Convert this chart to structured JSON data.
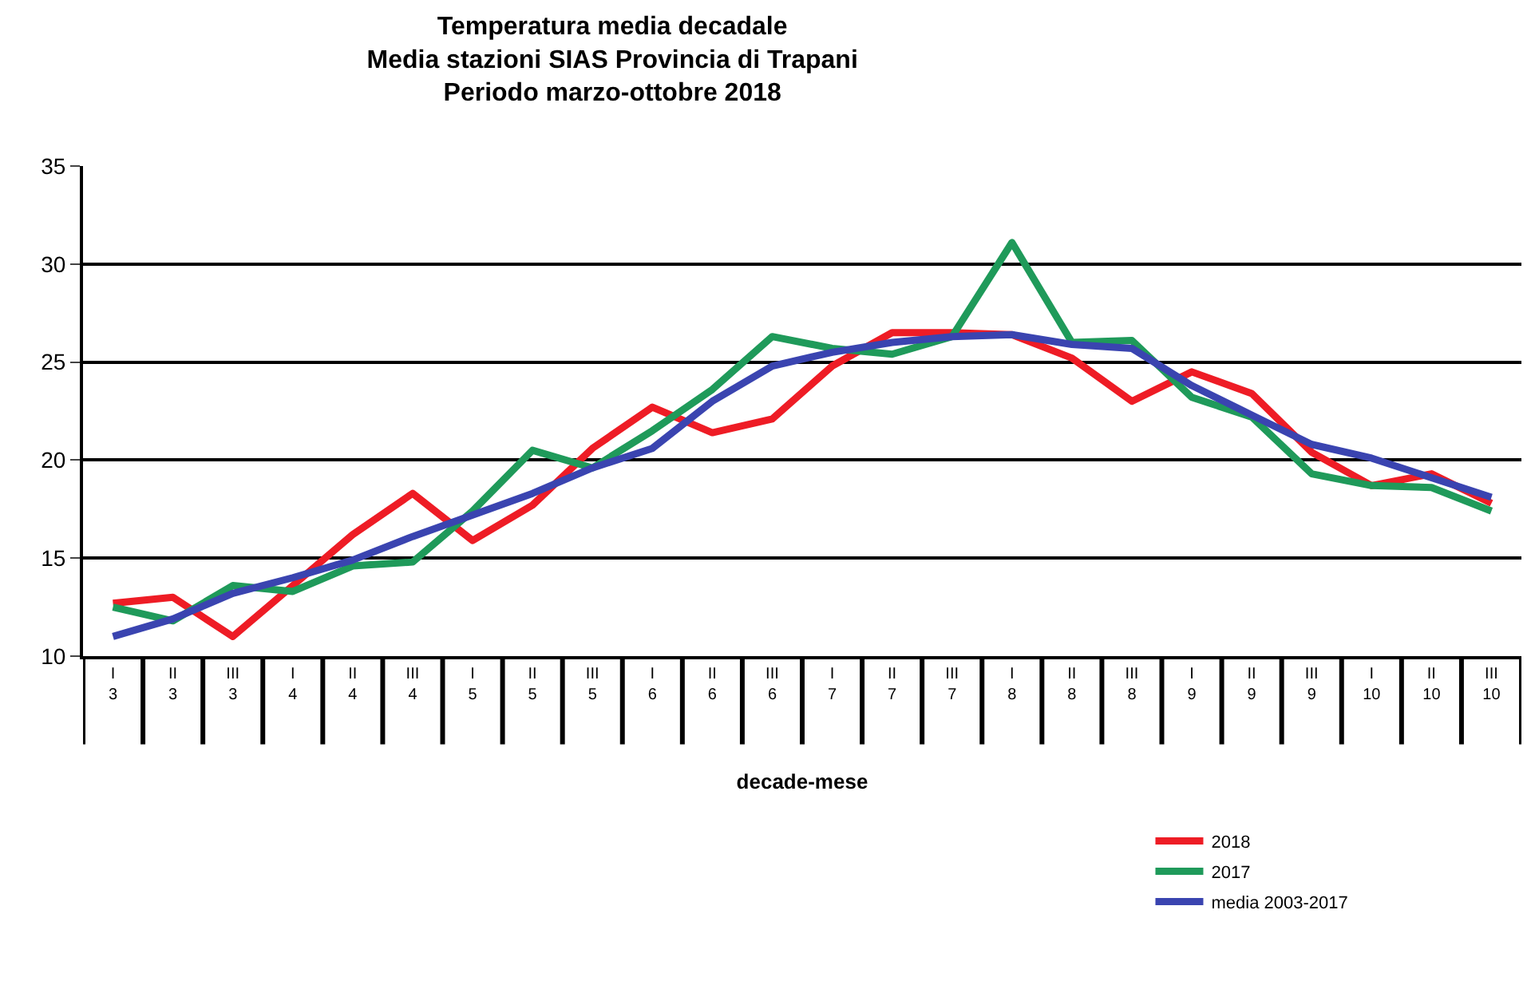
{
  "chart_data": {
    "type": "line",
    "title": "Temperatura media decadale\nMedia stazioni SIAS Provincia di Trapani\nPeriodo marzo-ottobre 2018",
    "xlabel": "decade-mese",
    "categories": [
      "I\n3",
      "II\n3",
      "III\n3",
      "I\n4",
      "II\n4",
      "III\n4",
      "I\n5",
      "II\n5",
      "III\n5",
      "I\n6",
      "II\n6",
      "III\n6",
      "I\n7",
      "II\n7",
      "III\n7",
      "I\n8",
      "II\n8",
      "III\n8",
      "I\n9",
      "II\n9",
      "III\n9",
      "I\n10",
      "II\n10",
      "III\n10"
    ],
    "series": [
      {
        "name": "2018",
        "color": "#ee1c25",
        "values": [
          12.7,
          13.0,
          11.0,
          13.6,
          16.2,
          18.3,
          15.9,
          17.7,
          20.6,
          22.7,
          21.4,
          22.1,
          24.8,
          26.5,
          26.5,
          26.4,
          25.2,
          23.0,
          24.5,
          23.4,
          20.4,
          18.7,
          19.3,
          17.8
        ]
      },
      {
        "name": "2017",
        "color": "#1f9a5a",
        "values": [
          12.5,
          11.8,
          13.6,
          13.3,
          14.6,
          14.8,
          17.4,
          20.5,
          19.6,
          21.5,
          23.6,
          26.3,
          25.7,
          25.4,
          26.3,
          31.1,
          26.0,
          26.1,
          23.2,
          22.2,
          19.3,
          18.7,
          18.6,
          17.4
        ]
      },
      {
        "name": "media 2003-2017",
        "color": "#3a44b0",
        "values": [
          11.0,
          11.9,
          13.2,
          14.0,
          14.9,
          16.1,
          17.2,
          18.3,
          19.6,
          20.6,
          23.0,
          24.8,
          25.5,
          26.0,
          26.3,
          26.4,
          25.9,
          25.7,
          23.8,
          22.3,
          20.8,
          20.1,
          19.1,
          18.1
        ]
      }
    ],
    "ylim": [
      10,
      35
    ],
    "yticks": [
      10,
      15,
      20,
      25,
      30,
      35
    ],
    "grid": "y",
    "legend": "bottom right",
    "marker": "none",
    "line_style": "solid"
  }
}
